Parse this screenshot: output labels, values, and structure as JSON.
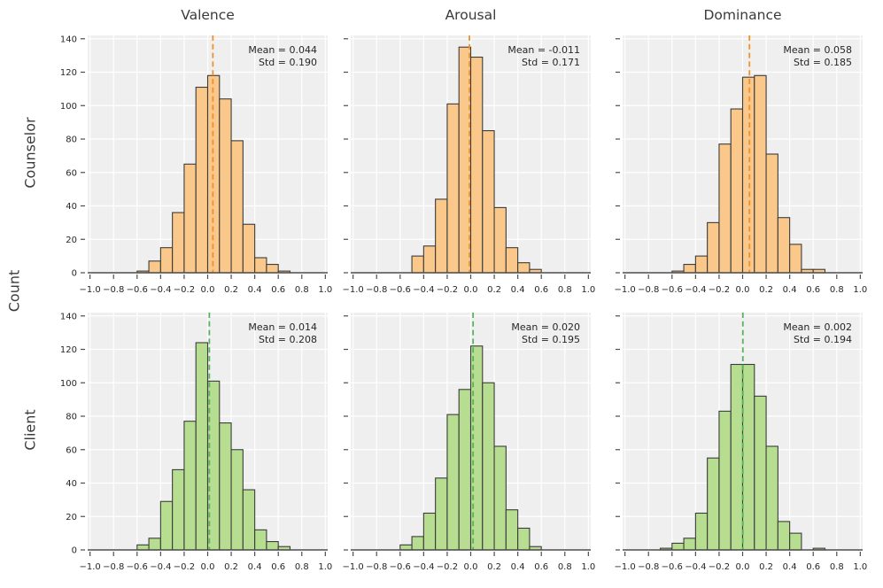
{
  "chart_data": {
    "type": "histogram-grid",
    "col_titles": [
      "Valence",
      "Arousal",
      "Dominance"
    ],
    "rows": [
      {
        "label": "Counselor",
        "fill": "#fac88a",
        "line": "#f0912a"
      },
      {
        "label": "Client",
        "fill": "#b6dd90",
        "line": "#56b45c"
      }
    ],
    "shared_ylabel": "Count",
    "x_axis": {
      "min": -1.02,
      "max": 1.02,
      "ticks": [
        -1.0,
        -0.8,
        -0.6,
        -0.4,
        -0.2,
        0.0,
        0.2,
        0.4,
        0.6,
        0.8,
        1.0
      ],
      "tick_labels": [
        "−1.0",
        "−0.8",
        "−0.6",
        "−0.4",
        "−0.2",
        "0.0",
        "0.2",
        "0.4",
        "0.6",
        "0.8",
        "1.0"
      ]
    },
    "y_axis": {
      "min": 0,
      "max": 142,
      "ticks": [
        0,
        20,
        40,
        60,
        80,
        100,
        120,
        140
      ],
      "tick_labels": [
        "0",
        "20",
        "40",
        "60",
        "80",
        "100",
        "120",
        "140"
      ]
    },
    "bin_width": 0.1,
    "colors": {
      "panel_bg": "#efefef",
      "grid": "#ffffff",
      "bar_edge": "#3c3c3c",
      "axis": "#4d4d4d",
      "text": "#262626"
    },
    "subplots": [
      {
        "row": "Counselor",
        "measure": "Valence",
        "mean": 0.044,
        "std": 0.19,
        "annotation": [
          "Mean = 0.044",
          "Std = 0.190"
        ],
        "bin_start": -0.6,
        "counts": [
          1,
          7,
          15,
          36,
          65,
          111,
          118,
          104,
          79,
          29,
          9,
          5,
          1
        ]
      },
      {
        "row": "Counselor",
        "measure": "Arousal",
        "mean": -0.011,
        "std": 0.171,
        "annotation": [
          "Mean = -0.011",
          "Std = 0.171"
        ],
        "bin_start": -0.5,
        "counts": [
          10,
          16,
          44,
          101,
          135,
          129,
          85,
          39,
          15,
          6,
          2
        ]
      },
      {
        "row": "Counselor",
        "measure": "Dominance",
        "mean": 0.058,
        "std": 0.185,
        "annotation": [
          "Mean = 0.058",
          "Std = 0.185"
        ],
        "bin_start": -0.6,
        "counts": [
          1,
          5,
          10,
          30,
          77,
          98,
          117,
          118,
          71,
          33,
          17,
          2,
          2
        ]
      },
      {
        "row": "Client",
        "measure": "Valence",
        "mean": 0.014,
        "std": 0.208,
        "annotation": [
          "Mean = 0.014",
          "Std = 0.208"
        ],
        "bin_start": -0.6,
        "counts": [
          3,
          7,
          29,
          48,
          77,
          124,
          101,
          76,
          60,
          36,
          12,
          5,
          2
        ]
      },
      {
        "row": "Client",
        "measure": "Arousal",
        "mean": 0.02,
        "std": 0.195,
        "annotation": [
          "Mean = 0.020",
          "Std = 0.195"
        ],
        "bin_start": -0.6,
        "counts": [
          3,
          8,
          22,
          43,
          81,
          96,
          122,
          100,
          62,
          24,
          13,
          2
        ]
      },
      {
        "row": "Client",
        "measure": "Dominance",
        "mean": 0.002,
        "std": 0.194,
        "annotation": [
          "Mean = 0.002",
          "Std = 0.194"
        ],
        "bin_start": -0.7,
        "counts": [
          1,
          4,
          7,
          22,
          55,
          83,
          111,
          111,
          92,
          62,
          17,
          10,
          0,
          1
        ]
      }
    ]
  }
}
